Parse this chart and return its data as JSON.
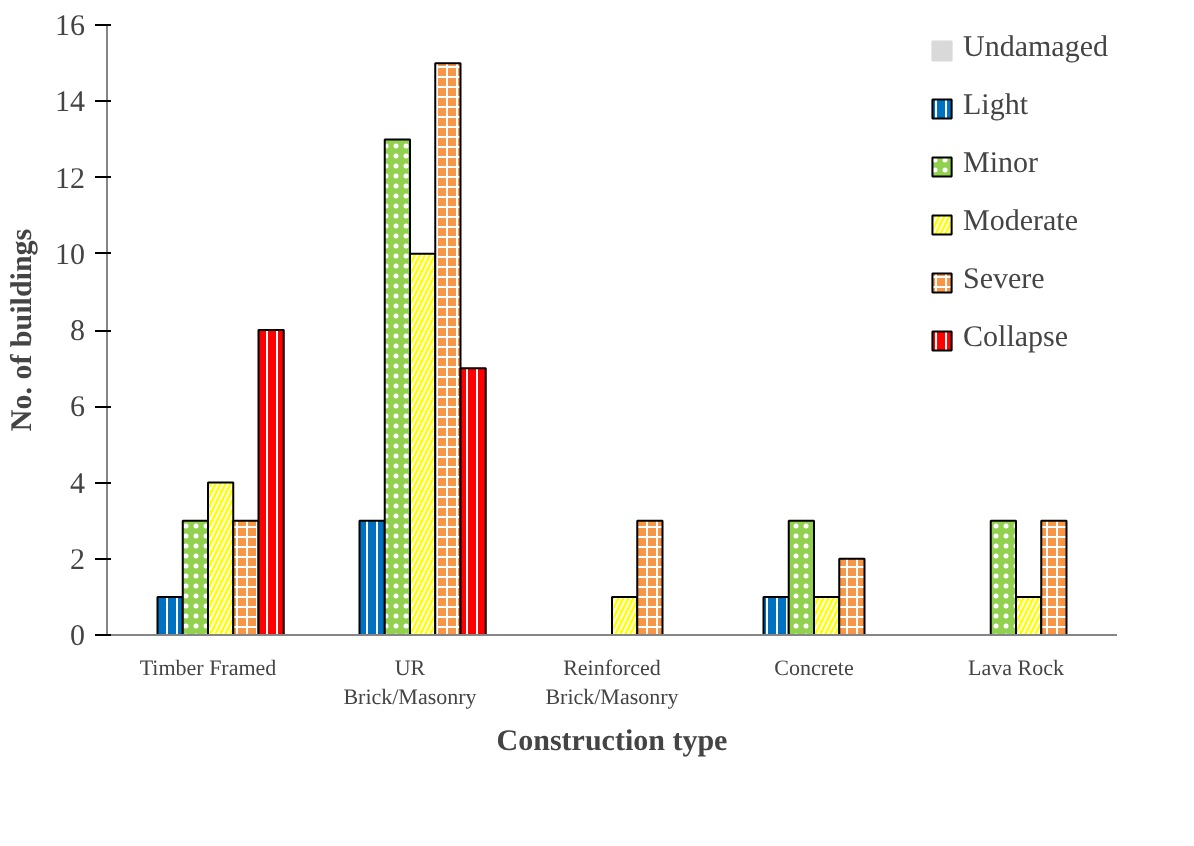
{
  "chart_data": {
    "type": "bar",
    "xlabel": "Construction type",
    "ylabel": "No. of buildings",
    "categories": [
      "Timber Framed",
      "UR\nBrick/Masonry",
      "Reinforced\nBrick/Masonry",
      "Concrete",
      "Lava Rock"
    ],
    "series": [
      {
        "name": "Undamaged",
        "color": "#d9d9d9",
        "values": [
          0,
          0,
          0,
          0,
          0
        ]
      },
      {
        "name": "Light",
        "color": "#0070c0",
        "values": [
          1,
          3,
          0,
          1,
          0
        ]
      },
      {
        "name": "Minor",
        "color": "#92d050",
        "values": [
          3,
          13,
          0,
          3,
          3
        ]
      },
      {
        "name": "Moderate",
        "color": "#ffff00",
        "values": [
          4,
          10,
          1,
          1,
          1
        ]
      },
      {
        "name": "Severe",
        "color": "#f79646",
        "values": [
          3,
          15,
          3,
          2,
          3
        ]
      },
      {
        "name": "Collapse",
        "color": "#ff0000",
        "values": [
          8,
          7,
          0,
          0,
          0
        ]
      }
    ],
    "ylim": [
      0,
      16
    ],
    "yticks": [
      0,
      2,
      4,
      6,
      8,
      10,
      12,
      14,
      16
    ],
    "grid": false,
    "legend": "top right"
  }
}
